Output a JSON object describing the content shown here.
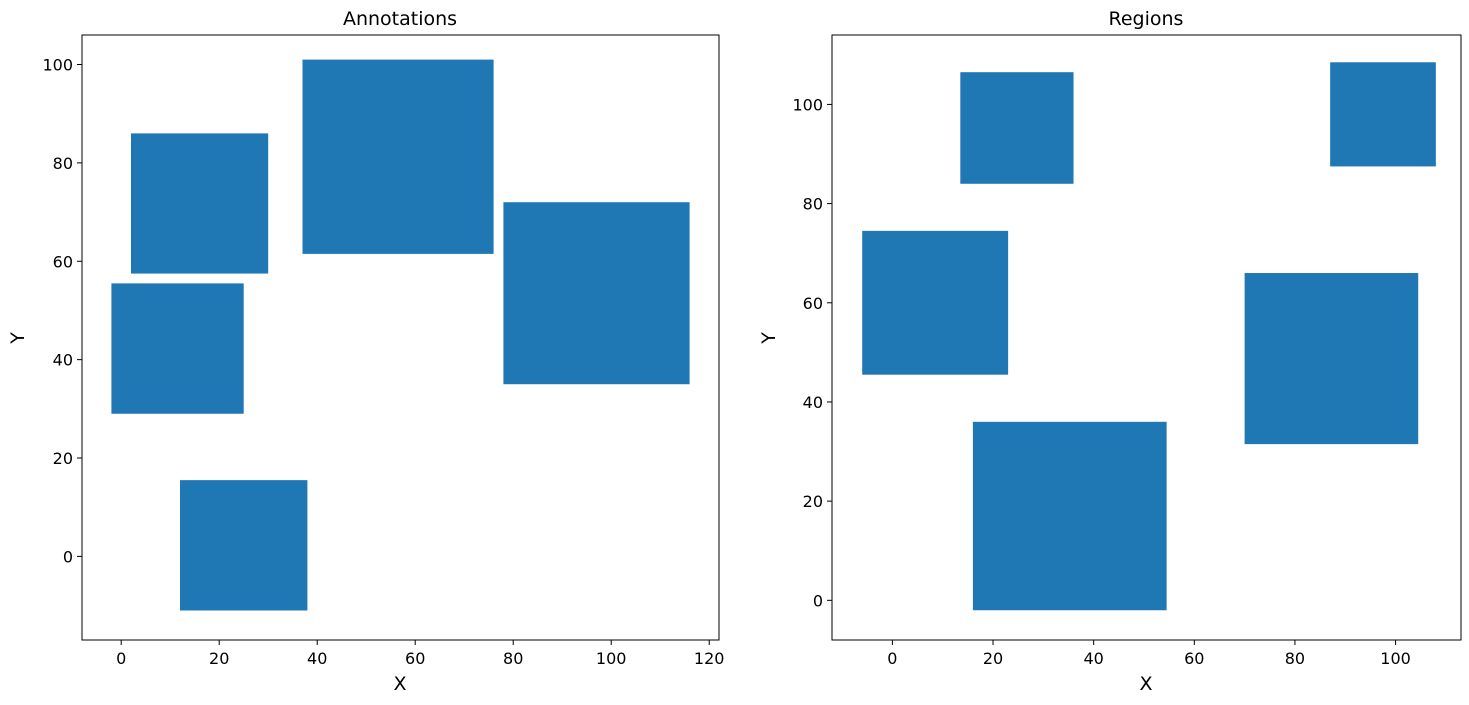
{
  "chart_data": [
    {
      "type": "rectangles",
      "title": "Annotations",
      "xlabel": "X",
      "ylabel": "Y",
      "xlim": [
        -8,
        122
      ],
      "ylim": [
        -17,
        106
      ],
      "xticks": [
        0,
        20,
        40,
        60,
        80,
        100,
        120
      ],
      "yticks": [
        0,
        20,
        40,
        60,
        80,
        100
      ],
      "grid": false,
      "color": "#1f77b4",
      "rects": [
        {
          "x0": 2,
          "x1": 30,
          "y0": 57.5,
          "y1": 86
        },
        {
          "x0": -2,
          "x1": 25,
          "y0": 29,
          "y1": 55.5
        },
        {
          "x0": 37,
          "x1": 76,
          "y0": 61.5,
          "y1": 101
        },
        {
          "x0": 78,
          "x1": 116,
          "y0": 35,
          "y1": 72
        },
        {
          "x0": 12,
          "x1": 38,
          "y0": -11,
          "y1": 15.5
        }
      ]
    },
    {
      "type": "rectangles",
      "title": "Regions",
      "xlabel": "X",
      "ylabel": "Y",
      "xlim": [
        -12,
        113
      ],
      "ylim": [
        -8,
        114
      ],
      "xticks": [
        0,
        20,
        40,
        60,
        80,
        100
      ],
      "yticks": [
        0,
        20,
        40,
        60,
        80,
        100
      ],
      "grid": false,
      "color": "#1f77b4",
      "rects": [
        {
          "x0": 13.5,
          "x1": 36,
          "y0": 84,
          "y1": 106.5
        },
        {
          "x0": 87,
          "x1": 108,
          "y0": 87.5,
          "y1": 108.5
        },
        {
          "x0": -6,
          "x1": 23,
          "y0": 45.5,
          "y1": 74.5
        },
        {
          "x0": 70,
          "x1": 104.5,
          "y0": 31.5,
          "y1": 66
        },
        {
          "x0": 16,
          "x1": 54.5,
          "y0": -2,
          "y1": 36
        }
      ]
    }
  ]
}
